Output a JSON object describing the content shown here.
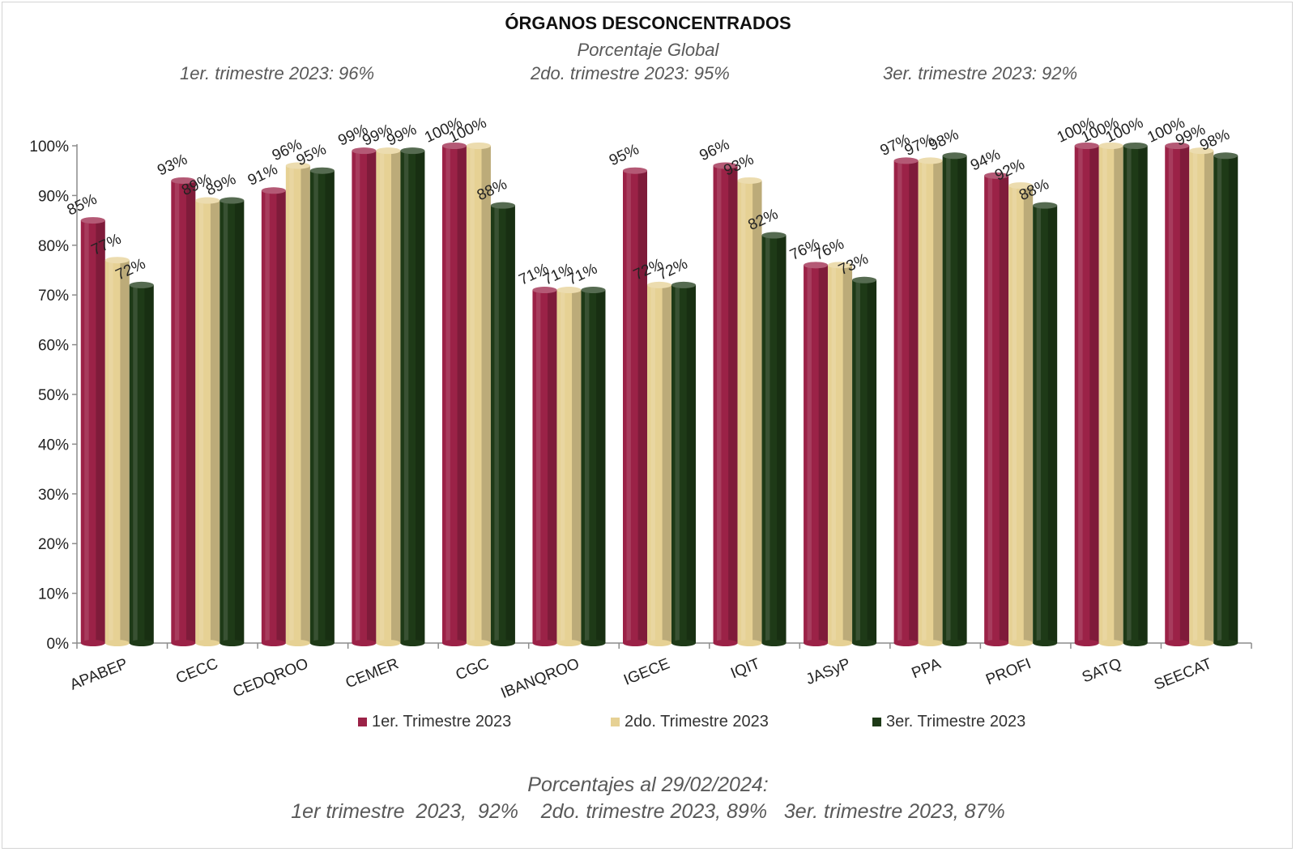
{
  "header": {
    "title": "ÓRGANOS DESCONCENTRADOS",
    "subtitle": "Porcentaje Global",
    "q1": "1er. trimestre 2023: 96%",
    "q2": "2do. trimestre 2023: 95%",
    "q3": "3er. trimestre 2023:  92%"
  },
  "footer": {
    "line1": "Porcentajes al 29/02/2024:",
    "line2": "1er trimestre  2023,  92%    2do. trimestre 2023, 89%   3er. trimestre 2023, 87%"
  },
  "colors": {
    "series1": "#9b2247",
    "series2": "#e6d194",
    "series3": "#1e3a17"
  },
  "chart_data": {
    "type": "bar",
    "title": "ÓRGANOS DESCONCENTRADOS",
    "ylim": [
      0,
      100
    ],
    "yticks": [
      "0%",
      "10%",
      "20%",
      "30%",
      "40%",
      "50%",
      "60%",
      "70%",
      "80%",
      "90%",
      "100%"
    ],
    "categories": [
      "APABEP",
      "CECC",
      "CEDQROO",
      "CEMER",
      "CGC",
      "IBANQROO",
      "IGECE",
      "IQIT",
      "JASyP",
      "PPA",
      "PROFI",
      "SATQ",
      "SEECAT"
    ],
    "series": [
      {
        "name": "1er. Trimestre 2023",
        "values": [
          85,
          93,
          91,
          99,
          100,
          71,
          95,
          96,
          76,
          97,
          94,
          100,
          100
        ]
      },
      {
        "name": "2do. Trimestre 2023",
        "values": [
          77,
          89,
          96,
          99,
          100,
          71,
          72,
          93,
          76,
          97,
          92,
          100,
          99
        ]
      },
      {
        "name": "3er. Trimestre 2023",
        "values": [
          72,
          89,
          95,
          99,
          88,
          71,
          72,
          82,
          73,
          98,
          88,
          100,
          98
        ]
      }
    ],
    "legend": "bottom"
  }
}
